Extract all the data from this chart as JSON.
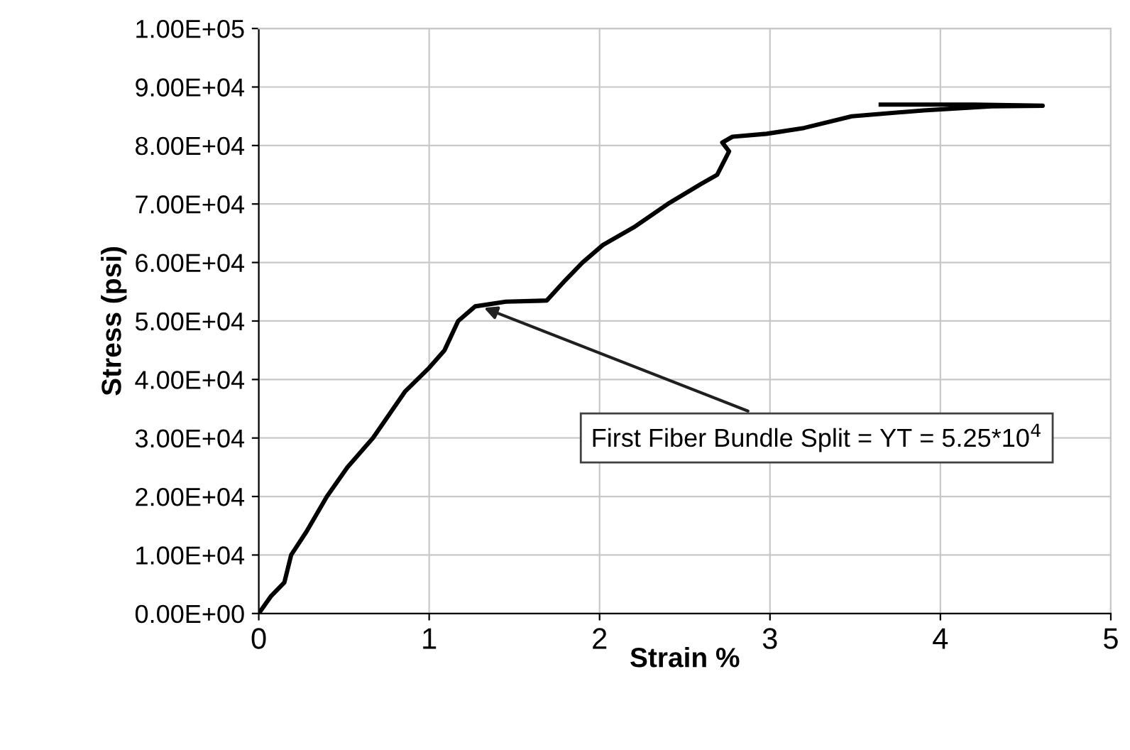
{
  "chart_data": {
    "type": "line",
    "xlabel": "Strain %",
    "ylabel": "Stress (psi)",
    "x": [
      0,
      0.07,
      0.15,
      0.19,
      0.28,
      0.4,
      0.52,
      0.67,
      0.86,
      1.0,
      1.09,
      1.17,
      1.27,
      1.45,
      1.69,
      1.8,
      1.9,
      2.02,
      2.2,
      2.4,
      2.6,
      2.69,
      2.76,
      2.72,
      2.78,
      2.98,
      3.2,
      3.48,
      3.9,
      4.3,
      4.6,
      4.2,
      3.65
    ],
    "series": [
      {
        "color": "#000000",
        "values": [
          0,
          2900,
          5300,
          10000,
          14000,
          20000,
          25000,
          30000,
          38000,
          42000,
          45000,
          50000,
          52500,
          53300,
          53500,
          57000,
          60000,
          63000,
          66000,
          70000,
          73500,
          75000,
          79000,
          80500,
          81500,
          82000,
          83000,
          85000,
          86000,
          86700,
          86800,
          87000,
          87000
        ]
      }
    ],
    "annotations": [
      {
        "text": "First Fiber Bundle Split = YT = 5.25*10$^{4}$",
        "x": 1.3,
        "y": 52500
      }
    ],
    "xlim": [
      0,
      5
    ],
    "xticks": [
      0,
      1,
      2,
      3,
      4,
      5
    ],
    "ylim": [
      0,
      100000
    ],
    "yticks": [
      {
        "value": 0,
        "label": "0.00E+00"
      },
      {
        "value": 10000,
        "label": "1.00E+04"
      },
      {
        "value": 20000,
        "label": "2.00E+04"
      },
      {
        "value": 30000,
        "label": "3.00E+04"
      },
      {
        "value": 40000,
        "label": "4.00E+04"
      },
      {
        "value": 50000,
        "label": "5.00E+04"
      },
      {
        "value": 60000,
        "label": "6.00E+04"
      },
      {
        "value": 70000,
        "label": "7.00E+04"
      },
      {
        "value": 80000,
        "label": "8.00E+04"
      },
      {
        "value": 90000,
        "label": "9.00E+04"
      },
      {
        "value": 100000,
        "label": "1.00E+05"
      }
    ],
    "grid": true,
    "marker": "none",
    "line_style": "solid"
  }
}
